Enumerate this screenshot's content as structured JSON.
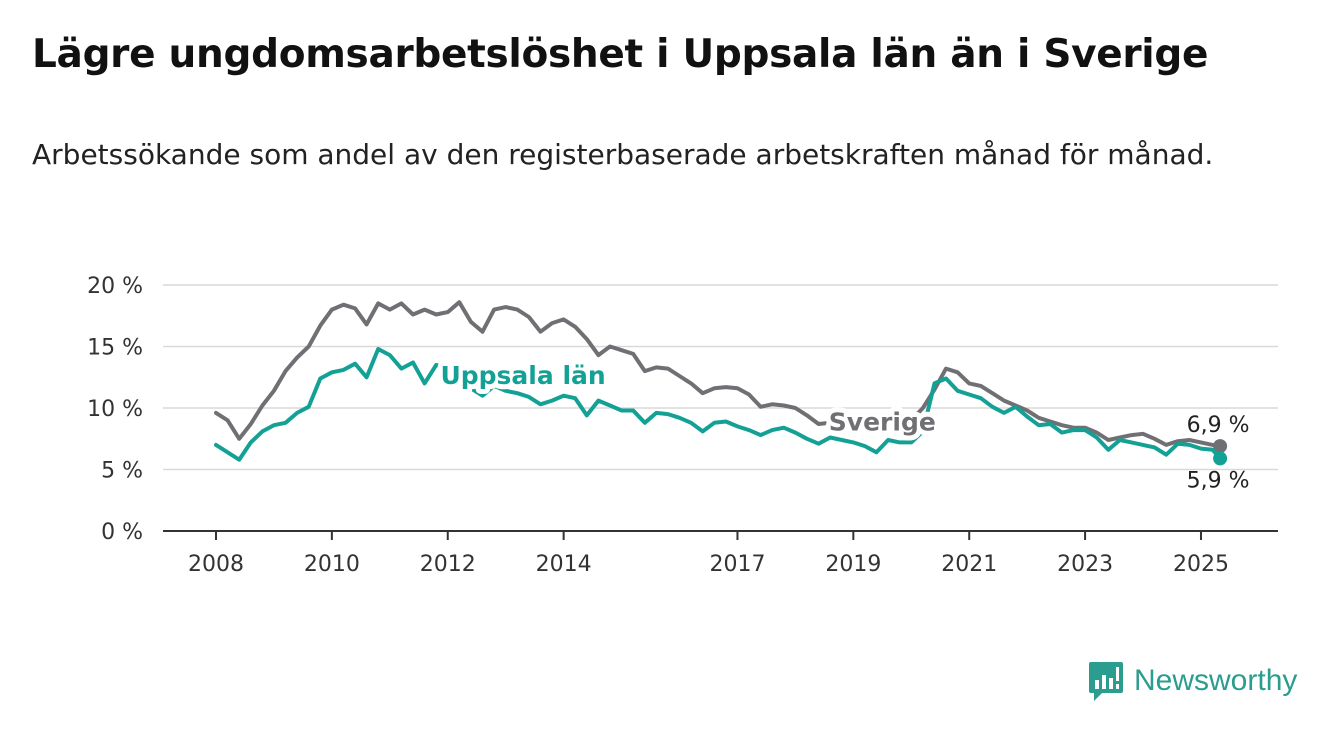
{
  "title": "Lägre ungdomsarbetslöshet i Uppsala län än i Sverige",
  "subtitle": "Arbetssökande som andel av den registerbaserade arbetskraften månad för månad.",
  "brand": {
    "name": "Newsworthy",
    "color": "#2a9d8f",
    "icon": "bar-chart-icon"
  },
  "chart_data": {
    "type": "line",
    "title": "Lägre ungdomsarbetslöshet i Uppsala län än i Sverige",
    "ylabel": "",
    "ylim": [
      0,
      20
    ],
    "xlim": [
      2007.9,
      2026.2
    ],
    "yticks": [
      0,
      5,
      10,
      15,
      20
    ],
    "ytick_labels": [
      "0 %",
      "5 %",
      "10 %",
      "15 %",
      "20 %"
    ],
    "xticks": [
      2008,
      2010,
      2012,
      2014,
      2017,
      2019,
      2021,
      2023,
      2025
    ],
    "xtick_labels": [
      "2008",
      "2010",
      "2012",
      "2014",
      "2017",
      "2019",
      "2021",
      "2023",
      "2025"
    ],
    "grid": true,
    "legend": "direct labels on lines",
    "series": [
      {
        "name": "Sverige",
        "color": "#707074",
        "end_label": "6,9 %",
        "points": [
          [
            2008.0,
            9.6
          ],
          [
            2008.2,
            9.0
          ],
          [
            2008.4,
            7.5
          ],
          [
            2008.6,
            8.7
          ],
          [
            2008.8,
            10.2
          ],
          [
            2009.0,
            11.4
          ],
          [
            2009.2,
            13.0
          ],
          [
            2009.4,
            14.1
          ],
          [
            2009.6,
            15.0
          ],
          [
            2009.8,
            16.7
          ],
          [
            2010.0,
            18.0
          ],
          [
            2010.2,
            18.4
          ],
          [
            2010.4,
            18.1
          ],
          [
            2010.6,
            16.8
          ],
          [
            2010.8,
            18.5
          ],
          [
            2011.0,
            18.0
          ],
          [
            2011.2,
            18.5
          ],
          [
            2011.4,
            17.6
          ],
          [
            2011.6,
            18.0
          ],
          [
            2011.8,
            17.6
          ],
          [
            2012.0,
            17.8
          ],
          [
            2012.2,
            18.6
          ],
          [
            2012.4,
            17.0
          ],
          [
            2012.6,
            16.2
          ],
          [
            2012.8,
            18.0
          ],
          [
            2013.0,
            18.2
          ],
          [
            2013.2,
            18.0
          ],
          [
            2013.4,
            17.4
          ],
          [
            2013.6,
            16.2
          ],
          [
            2013.8,
            16.9
          ],
          [
            2014.0,
            17.2
          ],
          [
            2014.2,
            16.6
          ],
          [
            2014.4,
            15.6
          ],
          [
            2014.6,
            14.3
          ],
          [
            2014.8,
            15.0
          ],
          [
            2015.0,
            14.7
          ],
          [
            2015.2,
            14.4
          ],
          [
            2015.4,
            13.0
          ],
          [
            2015.6,
            13.3
          ],
          [
            2015.8,
            13.2
          ],
          [
            2016.0,
            12.6
          ],
          [
            2016.2,
            12.0
          ],
          [
            2016.4,
            11.2
          ],
          [
            2016.6,
            11.6
          ],
          [
            2016.8,
            11.7
          ],
          [
            2017.0,
            11.6
          ],
          [
            2017.2,
            11.1
          ],
          [
            2017.4,
            10.1
          ],
          [
            2017.6,
            10.3
          ],
          [
            2017.8,
            10.2
          ],
          [
            2018.0,
            10.0
          ],
          [
            2018.2,
            9.4
          ],
          [
            2018.4,
            8.7
          ],
          [
            2018.6,
            8.8
          ],
          [
            2018.8,
            8.8
          ],
          [
            2019.0,
            9.0
          ],
          [
            2019.2,
            9.2
          ],
          [
            2019.4,
            8.6
          ],
          [
            2019.6,
            8.9
          ],
          [
            2019.8,
            8.8
          ],
          [
            2020.0,
            9.0
          ],
          [
            2020.2,
            10.0
          ],
          [
            2020.4,
            11.5
          ],
          [
            2020.6,
            13.2
          ],
          [
            2020.8,
            12.9
          ],
          [
            2021.0,
            12.0
          ],
          [
            2021.2,
            11.8
          ],
          [
            2021.4,
            11.2
          ],
          [
            2021.6,
            10.6
          ],
          [
            2021.8,
            10.2
          ],
          [
            2022.0,
            9.8
          ],
          [
            2022.2,
            9.2
          ],
          [
            2022.4,
            8.9
          ],
          [
            2022.6,
            8.6
          ],
          [
            2022.8,
            8.4
          ],
          [
            2023.0,
            8.4
          ],
          [
            2023.2,
            8.0
          ],
          [
            2023.4,
            7.4
          ],
          [
            2023.6,
            7.6
          ],
          [
            2023.8,
            7.8
          ],
          [
            2024.0,
            7.9
          ],
          [
            2024.2,
            7.5
          ],
          [
            2024.4,
            7.0
          ],
          [
            2024.6,
            7.3
          ],
          [
            2024.8,
            7.4
          ],
          [
            2025.0,
            7.2
          ],
          [
            2025.2,
            7.0
          ],
          [
            2025.33,
            6.9
          ]
        ]
      },
      {
        "name": "Uppsala län",
        "color": "#14a195",
        "end_label": "5,9 %",
        "points": [
          [
            2008.0,
            7.0
          ],
          [
            2008.2,
            6.4
          ],
          [
            2008.4,
            5.8
          ],
          [
            2008.6,
            7.2
          ],
          [
            2008.8,
            8.1
          ],
          [
            2009.0,
            8.6
          ],
          [
            2009.2,
            8.8
          ],
          [
            2009.4,
            9.6
          ],
          [
            2009.6,
            10.1
          ],
          [
            2009.8,
            12.4
          ],
          [
            2010.0,
            12.9
          ],
          [
            2010.2,
            13.1
          ],
          [
            2010.4,
            13.6
          ],
          [
            2010.6,
            12.5
          ],
          [
            2010.8,
            14.8
          ],
          [
            2011.0,
            14.3
          ],
          [
            2011.2,
            13.2
          ],
          [
            2011.4,
            13.7
          ],
          [
            2011.6,
            12.0
          ],
          [
            2011.8,
            13.5
          ],
          [
            2012.0,
            13.3
          ],
          [
            2012.2,
            12.6
          ],
          [
            2012.4,
            11.6
          ],
          [
            2012.6,
            11.0
          ],
          [
            2012.8,
            11.8
          ],
          [
            2013.0,
            11.4
          ],
          [
            2013.2,
            11.2
          ],
          [
            2013.4,
            10.9
          ],
          [
            2013.6,
            10.3
          ],
          [
            2013.8,
            10.6
          ],
          [
            2014.0,
            11.0
          ],
          [
            2014.2,
            10.8
          ],
          [
            2014.4,
            9.4
          ],
          [
            2014.6,
            10.6
          ],
          [
            2014.8,
            10.2
          ],
          [
            2015.0,
            9.8
          ],
          [
            2015.2,
            9.8
          ],
          [
            2015.4,
            8.8
          ],
          [
            2015.6,
            9.6
          ],
          [
            2015.8,
            9.5
          ],
          [
            2016.0,
            9.2
          ],
          [
            2016.2,
            8.8
          ],
          [
            2016.4,
            8.1
          ],
          [
            2016.6,
            8.8
          ],
          [
            2016.8,
            8.9
          ],
          [
            2017.0,
            8.5
          ],
          [
            2017.2,
            8.2
          ],
          [
            2017.4,
            7.8
          ],
          [
            2017.6,
            8.2
          ],
          [
            2017.8,
            8.4
          ],
          [
            2018.0,
            8.0
          ],
          [
            2018.2,
            7.5
          ],
          [
            2018.4,
            7.1
          ],
          [
            2018.6,
            7.6
          ],
          [
            2018.8,
            7.4
          ],
          [
            2019.0,
            7.2
          ],
          [
            2019.2,
            6.9
          ],
          [
            2019.4,
            6.4
          ],
          [
            2019.6,
            7.4
          ],
          [
            2019.8,
            7.2
          ],
          [
            2020.0,
            7.2
          ],
          [
            2020.2,
            8.1
          ],
          [
            2020.4,
            12.0
          ],
          [
            2020.6,
            12.4
          ],
          [
            2020.8,
            11.4
          ],
          [
            2021.0,
            11.1
          ],
          [
            2021.2,
            10.8
          ],
          [
            2021.4,
            10.1
          ],
          [
            2021.6,
            9.6
          ],
          [
            2021.8,
            10.1
          ],
          [
            2022.0,
            9.3
          ],
          [
            2022.2,
            8.6
          ],
          [
            2022.4,
            8.7
          ],
          [
            2022.6,
            8.0
          ],
          [
            2022.8,
            8.2
          ],
          [
            2023.0,
            8.2
          ],
          [
            2023.2,
            7.6
          ],
          [
            2023.4,
            6.6
          ],
          [
            2023.6,
            7.4
          ],
          [
            2023.8,
            7.2
          ],
          [
            2024.0,
            7.0
          ],
          [
            2024.2,
            6.8
          ],
          [
            2024.4,
            6.2
          ],
          [
            2024.6,
            7.1
          ],
          [
            2024.8,
            7.0
          ],
          [
            2025.0,
            6.7
          ],
          [
            2025.2,
            6.6
          ],
          [
            2025.33,
            5.9
          ]
        ]
      }
    ]
  }
}
